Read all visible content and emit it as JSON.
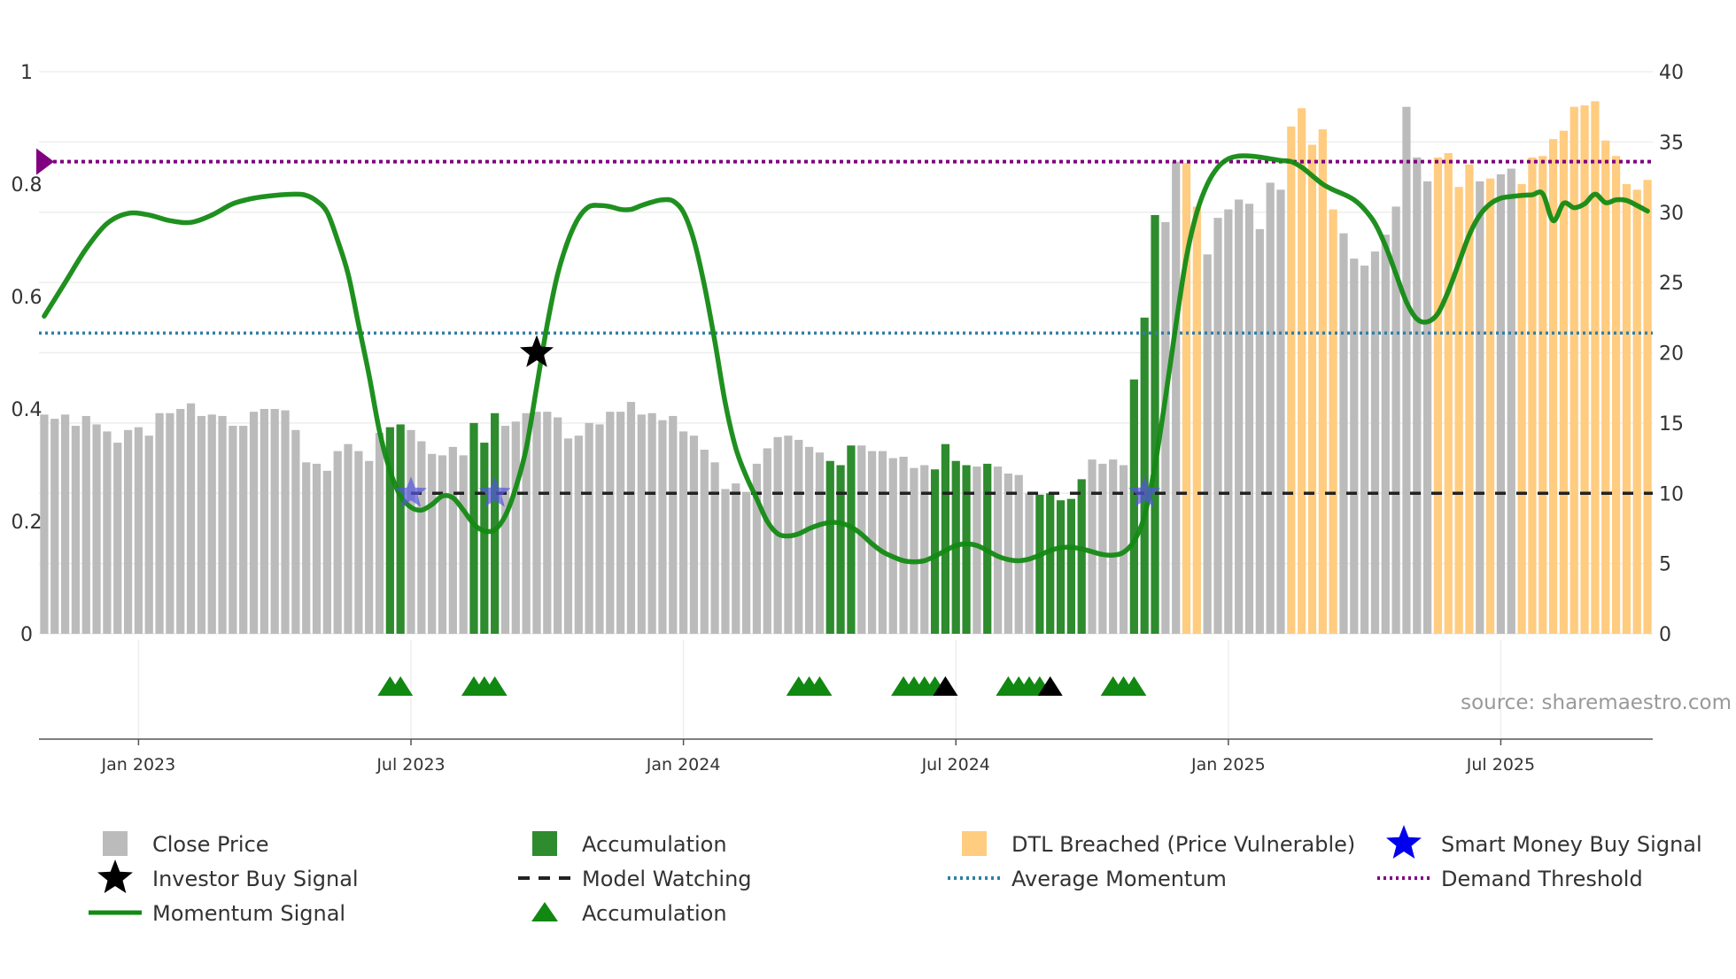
{
  "colors": {
    "close": "#bbbbbb",
    "accumulation_bar": "#2e8b2e",
    "dtl": "#ffcc80",
    "momentum": "#138a13",
    "watch": "#222222",
    "average": "#2f7fa8",
    "demand": "#800080",
    "smart_star": "#5555dd",
    "investor_star": "#000000",
    "tri_green": "#118811",
    "tri_black": "#000000"
  },
  "chart_data": {
    "type": "bar",
    "left_axis": {
      "ticks": [
        "0",
        "0.2",
        "0.4",
        "0.6",
        "0.8",
        "1"
      ],
      "range": [
        0,
        1
      ]
    },
    "right_axis": {
      "ticks": [
        "0",
        "5",
        "10",
        "15",
        "20",
        "25",
        "30",
        "35",
        "40"
      ],
      "range": [
        0,
        40
      ]
    },
    "x_axis": {
      "ticks": [
        {
          "label": "Jan 2023",
          "week": 9
        },
        {
          "label": "Jul 2023",
          "week": 35
        },
        {
          "label": "Jan 2024",
          "week": 61
        },
        {
          "label": "Jul 2024",
          "week": 87
        },
        {
          "label": "Jan 2025",
          "week": 113
        },
        {
          "label": "Jul 2025",
          "week": 139
        }
      ]
    },
    "close_price": [
      15.6,
      15.3,
      15.6,
      14.8,
      15.5,
      14.9,
      14.4,
      13.6,
      14.5,
      14.7,
      14.1,
      15.7,
      15.7,
      16.0,
      16.4,
      15.5,
      15.6,
      15.5,
      14.8,
      14.8,
      15.8,
      16.0,
      16.0,
      15.9,
      14.5,
      12.2,
      12.1,
      11.6,
      13.0,
      13.5,
      13.0,
      12.3,
      14.3,
      14.7,
      14.9,
      14.5,
      13.7,
      12.8,
      12.7,
      13.3,
      12.7,
      15.0,
      13.6,
      15.7,
      14.8,
      15.1,
      15.7,
      15.8,
      15.8,
      15.4,
      13.9,
      14.1,
      15.0,
      14.9,
      15.8,
      15.8,
      16.5,
      15.6,
      15.7,
      15.2,
      15.5,
      14.4,
      14.1,
      13.1,
      12.2,
      10.3,
      10.7,
      10.1,
      12.1,
      13.2,
      14.0,
      14.1,
      13.8,
      13.3,
      12.9,
      12.3,
      12.0,
      13.4,
      13.4,
      13.0,
      13.0,
      12.5,
      12.6,
      11.8,
      12.0,
      11.7,
      13.5,
      12.3,
      12.0,
      11.9,
      12.1,
      11.9,
      11.4,
      11.3,
      10.0,
      9.9,
      10.0,
      9.5,
      9.6,
      11.0,
      12.4,
      12.1,
      12.4,
      12.0,
      18.1,
      22.5,
      29.8,
      29.3,
      33.6,
      33.5,
      30.4,
      27.0,
      29.6,
      30.2,
      30.9,
      30.6,
      28.8,
      32.1,
      31.6,
      36.1,
      37.4,
      34.8,
      35.9,
      30.2,
      28.5,
      26.7,
      26.2,
      27.2,
      28.4,
      30.4,
      37.5,
      33.9,
      32.2,
      33.9,
      34.2,
      31.8,
      33.4,
      32.2,
      32.4,
      32.7,
      33.1,
      32.0,
      33.9,
      34.0,
      35.2,
      35.8,
      37.5,
      37.6,
      37.9,
      35.1,
      34.0,
      32.0,
      31.6,
      32.3
    ],
    "accumulation_weeks": [
      33,
      34,
      41,
      42,
      43,
      75,
      76,
      77,
      85,
      86,
      87,
      88,
      90,
      95,
      96,
      97,
      98,
      99,
      104,
      105,
      106
    ],
    "dtl_weeks": [
      109,
      110,
      119,
      120,
      121,
      122,
      123,
      133,
      134,
      135,
      136,
      138,
      141,
      142,
      143,
      144,
      145,
      146,
      147,
      148,
      149,
      150,
      151,
      152,
      153
    ],
    "momentum": [
      [
        0,
        0.565
      ],
      [
        2,
        0.625
      ],
      [
        4,
        0.685
      ],
      [
        6,
        0.73
      ],
      [
        8,
        0.748
      ],
      [
        10,
        0.745
      ],
      [
        12,
        0.735
      ],
      [
        14,
        0.732
      ],
      [
        16,
        0.745
      ],
      [
        18,
        0.765
      ],
      [
        20,
        0.775
      ],
      [
        22,
        0.78
      ],
      [
        24,
        0.782
      ],
      [
        25,
        0.78
      ],
      [
        26,
        0.77
      ],
      [
        27,
        0.75
      ],
      [
        28,
        0.7
      ],
      [
        29,
        0.64
      ],
      [
        30,
        0.55
      ],
      [
        31,
        0.46
      ],
      [
        32,
        0.36
      ],
      [
        33,
        0.29
      ],
      [
        34,
        0.245
      ],
      [
        35,
        0.225
      ],
      [
        36,
        0.22
      ],
      [
        37,
        0.23
      ],
      [
        38,
        0.245
      ],
      [
        39,
        0.242
      ],
      [
        40,
        0.22
      ],
      [
        41,
        0.195
      ],
      [
        42,
        0.183
      ],
      [
        43,
        0.185
      ],
      [
        44,
        0.21
      ],
      [
        45,
        0.26
      ],
      [
        46,
        0.33
      ],
      [
        47,
        0.44
      ],
      [
        48,
        0.55
      ],
      [
        49,
        0.64
      ],
      [
        50,
        0.7
      ],
      [
        51,
        0.74
      ],
      [
        52,
        0.76
      ],
      [
        53,
        0.762
      ],
      [
        54,
        0.76
      ],
      [
        55,
        0.755
      ],
      [
        56,
        0.755
      ],
      [
        57,
        0.762
      ],
      [
        58,
        0.768
      ],
      [
        59,
        0.772
      ],
      [
        60,
        0.77
      ],
      [
        61,
        0.75
      ],
      [
        62,
        0.7
      ],
      [
        63,
        0.62
      ],
      [
        64,
        0.52
      ],
      [
        65,
        0.41
      ],
      [
        66,
        0.33
      ],
      [
        67,
        0.28
      ],
      [
        68,
        0.24
      ],
      [
        69,
        0.2
      ],
      [
        70,
        0.178
      ],
      [
        71,
        0.174
      ],
      [
        72,
        0.178
      ],
      [
        73,
        0.187
      ],
      [
        74,
        0.194
      ],
      [
        75,
        0.198
      ],
      [
        76,
        0.197
      ],
      [
        77,
        0.19
      ],
      [
        78,
        0.177
      ],
      [
        79,
        0.16
      ],
      [
        80,
        0.146
      ],
      [
        81,
        0.137
      ],
      [
        82,
        0.13
      ],
      [
        83,
        0.128
      ],
      [
        84,
        0.13
      ],
      [
        85,
        0.138
      ],
      [
        86,
        0.148
      ],
      [
        87,
        0.157
      ],
      [
        88,
        0.16
      ],
      [
        89,
        0.157
      ],
      [
        90,
        0.148
      ],
      [
        91,
        0.138
      ],
      [
        92,
        0.132
      ],
      [
        93,
        0.13
      ],
      [
        94,
        0.133
      ],
      [
        95,
        0.14
      ],
      [
        96,
        0.148
      ],
      [
        97,
        0.153
      ],
      [
        98,
        0.154
      ],
      [
        99,
        0.151
      ],
      [
        100,
        0.146
      ],
      [
        101,
        0.141
      ],
      [
        102,
        0.14
      ],
      [
        103,
        0.145
      ],
      [
        104,
        0.165
      ],
      [
        105,
        0.21
      ],
      [
        106,
        0.3
      ],
      [
        107,
        0.42
      ],
      [
        108,
        0.55
      ],
      [
        109,
        0.67
      ],
      [
        110,
        0.75
      ],
      [
        111,
        0.8
      ],
      [
        112,
        0.83
      ],
      [
        113,
        0.845
      ],
      [
        114,
        0.85
      ],
      [
        115,
        0.85
      ],
      [
        116,
        0.848
      ],
      [
        117,
        0.845
      ],
      [
        118,
        0.842
      ],
      [
        119,
        0.84
      ],
      [
        120,
        0.83
      ],
      [
        121,
        0.815
      ],
      [
        122,
        0.8
      ],
      [
        123,
        0.79
      ],
      [
        124,
        0.782
      ],
      [
        125,
        0.772
      ],
      [
        126,
        0.755
      ],
      [
        127,
        0.73
      ],
      [
        128,
        0.69
      ],
      [
        129,
        0.64
      ],
      [
        130,
        0.59
      ],
      [
        131,
        0.56
      ],
      [
        132,
        0.555
      ],
      [
        133,
        0.57
      ],
      [
        134,
        0.61
      ],
      [
        135,
        0.66
      ],
      [
        136,
        0.71
      ],
      [
        137,
        0.745
      ],
      [
        138,
        0.765
      ],
      [
        139,
        0.775
      ],
      [
        140,
        0.778
      ],
      [
        141,
        0.78
      ],
      [
        142,
        0.781
      ],
      [
        143,
        0.783
      ],
      [
        144,
        0.735
      ],
      [
        145,
        0.766
      ],
      [
        146,
        0.758
      ],
      [
        147,
        0.765
      ],
      [
        148,
        0.782
      ],
      [
        149,
        0.767
      ],
      [
        150,
        0.772
      ],
      [
        151,
        0.771
      ],
      [
        152,
        0.762
      ],
      [
        153,
        0.752
      ]
    ],
    "average_momentum": 0.535,
    "demand_threshold": 0.84,
    "model_watching_level": 0.25,
    "smart_money_buy": [
      {
        "week": 35,
        "value": 0.25
      },
      {
        "week": 43,
        "value": 0.25
      },
      {
        "week": 105,
        "value": 0.25
      }
    ],
    "investor_buy": [
      {
        "week": 47,
        "value": 0.5
      }
    ],
    "accumulation_triangles_green": [
      33,
      34,
      41,
      42,
      43,
      72,
      73,
      74,
      82,
      83,
      84,
      85,
      92,
      93,
      94,
      95,
      102,
      103,
      104
    ],
    "accumulation_triangles_black": [
      86,
      96
    ]
  },
  "legend": [
    {
      "key": "close",
      "label": "Close Price"
    },
    {
      "key": "accumulation_bar",
      "label": "Accumulation"
    },
    {
      "key": "dtl",
      "label": "DTL Breached (Price Vulnerable)"
    },
    {
      "key": "smart_star",
      "label": "Smart Money Buy Signal"
    },
    {
      "key": "investor_star",
      "label": "Investor Buy Signal"
    },
    {
      "key": "watch",
      "label": "Model Watching"
    },
    {
      "key": "average",
      "label": "Average Momentum"
    },
    {
      "key": "demand",
      "label": "Demand Threshold"
    },
    {
      "key": "momentum",
      "label": "Momentum Signal"
    },
    {
      "key": "tri_green",
      "label": "Accumulation"
    }
  ],
  "source": "source: sharemaestro.com"
}
